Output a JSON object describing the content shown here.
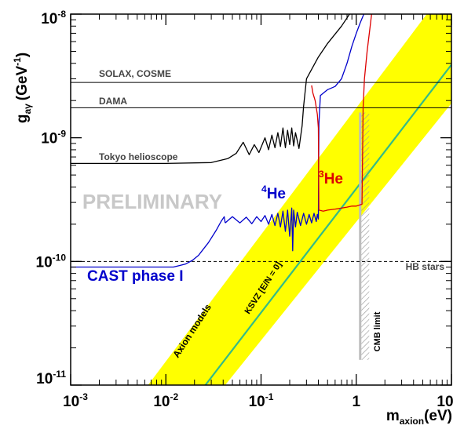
{
  "chart_data": {
    "type": "line",
    "x_scale": "log",
    "y_scale": "log",
    "xlim": [
      0.001,
      10
    ],
    "ylim": [
      1e-11,
      1e-08
    ],
    "grid": false,
    "xlabel": {
      "main": "m",
      "sub": "axion",
      "unit": "(eV)"
    },
    "ylabel": {
      "main": "g",
      "sub": "aγ",
      "unit": "(GeV",
      "unit_sup": "-1",
      "unit_close": ")"
    },
    "x_ticks": [
      {
        "value": 0.001,
        "base": "10",
        "exp": "-3"
      },
      {
        "value": 0.01,
        "base": "10",
        "exp": "-2"
      },
      {
        "value": 0.1,
        "base": "10",
        "exp": "-1"
      },
      {
        "value": 1,
        "base": "1",
        "exp": ""
      },
      {
        "value": 10,
        "base": "10",
        "exp": ""
      }
    ],
    "y_ticks": [
      {
        "value": 1e-11,
        "base": "10",
        "exp": "-11"
      },
      {
        "value": 1e-10,
        "base": "10",
        "exp": "-10"
      },
      {
        "value": 1e-09,
        "base": "10",
        "exp": "-9"
      },
      {
        "value": 1e-08,
        "base": "10",
        "exp": "-8"
      }
    ],
    "watermark": "PRELIMINARY",
    "axion_band": {
      "label": "Axion models",
      "color": "#ffff00",
      "polygon": [
        [
          0.0065,
          1e-11
        ],
        [
          0.042,
          1e-11
        ],
        [
          10,
          1.9e-09
        ],
        [
          10,
          1e-08
        ],
        [
          5.5,
          1e-08
        ],
        [
          0.0065,
          1e-11
        ]
      ]
    },
    "ksvz_line": {
      "label": "KSVZ [E/N = 0]",
      "color": "#33bb88",
      "points": [
        [
          0.026,
          1e-11
        ],
        [
          10,
          3.9e-09
        ]
      ]
    },
    "cmb_limit": {
      "label": "CMB limit",
      "x": 1.1,
      "y_range": [
        1.6e-11,
        1.6e-09
      ],
      "color": "#bdbdbd"
    },
    "reference_lines": [
      {
        "label": "SOLAX, COSME",
        "y": 2.8e-09,
        "style": "solid"
      },
      {
        "label": "DAMA",
        "y": 1.75e-09,
        "style": "solid"
      },
      {
        "label": "HB stars",
        "y": 1e-10,
        "style": "dashed"
      }
    ],
    "series": [
      {
        "name": "Tokyo helioscope",
        "color": "#000000",
        "label_color": "#444444",
        "points": [
          [
            0.001,
            6.2e-10
          ],
          [
            0.01,
            6.2e-10
          ],
          [
            0.03,
            6.3e-10
          ],
          [
            0.045,
            6.8e-10
          ],
          [
            0.055,
            7.5e-10
          ],
          [
            0.065,
            9.2e-10
          ],
          [
            0.075,
            7.3e-10
          ],
          [
            0.085,
            8.8e-10
          ],
          [
            0.095,
            7.6e-10
          ],
          [
            0.11,
            1e-09
          ],
          [
            0.12,
            8e-10
          ],
          [
            0.13,
            1.05e-09
          ],
          [
            0.14,
            8.3e-10
          ],
          [
            0.15,
            1.1e-09
          ],
          [
            0.16,
            8.5e-10
          ],
          [
            0.17,
            1.2e-09
          ],
          [
            0.18,
            8.3e-10
          ],
          [
            0.19,
            1.15e-09
          ],
          [
            0.2,
            8.8e-10
          ],
          [
            0.21,
            1.2e-09
          ],
          [
            0.22,
            8.6e-10
          ],
          [
            0.23,
            1.1e-09
          ],
          [
            0.25,
            8.2e-10
          ],
          [
            0.27,
            1.25e-09
          ],
          [
            0.28,
            1.8e-09
          ],
          [
            0.3,
            3e-09
          ],
          [
            0.4,
            4.5e-09
          ],
          [
            0.5,
            5.8e-09
          ],
          [
            0.7,
            8e-09
          ],
          [
            0.85,
            1e-08
          ]
        ]
      },
      {
        "name": "CAST phase I",
        "label_display": "CAST phase I",
        "color": "#0000cc",
        "points": [
          [
            0.001,
            9e-11
          ],
          [
            0.012,
            9e-11
          ],
          [
            0.016,
            9.5e-11
          ],
          [
            0.019,
            1.02e-10
          ],
          [
            0.022,
            1.12e-10
          ],
          [
            0.028,
            1.42e-10
          ],
          [
            0.034,
            1.8e-10
          ],
          [
            0.038,
            2.1e-10
          ],
          [
            0.041,
            2.3e-10
          ],
          [
            0.042,
            2.05e-10
          ]
        ]
      },
      {
        "name": "4He",
        "label_display": "He",
        "label_sup": "4",
        "color": "#0000cc",
        "points": [
          [
            0.042,
            2.05e-10
          ],
          [
            0.05,
            2.3e-10
          ],
          [
            0.06,
            2.05e-10
          ],
          [
            0.07,
            2.28e-10
          ],
          [
            0.08,
            2.02e-10
          ],
          [
            0.09,
            2.3e-10
          ],
          [
            0.1,
            2.1e-10
          ],
          [
            0.11,
            2.35e-10
          ],
          [
            0.12,
            2e-10
          ],
          [
            0.13,
            2.4e-10
          ],
          [
            0.14,
            1.95e-10
          ],
          [
            0.15,
            2.45e-10
          ],
          [
            0.16,
            1.9e-10
          ],
          [
            0.17,
            2.55e-10
          ],
          [
            0.18,
            1.75e-10
          ],
          [
            0.19,
            2.6e-10
          ],
          [
            0.2,
            1.6e-10
          ],
          [
            0.21,
            2.7e-10
          ],
          [
            0.215,
            1.22e-10
          ],
          [
            0.22,
            2.6e-10
          ],
          [
            0.23,
            1.9e-10
          ],
          [
            0.24,
            2.5e-10
          ],
          [
            0.26,
            1.95e-10
          ],
          [
            0.28,
            2.45e-10
          ],
          [
            0.3,
            2e-10
          ],
          [
            0.32,
            2.4e-10
          ],
          [
            0.34,
            2.05e-10
          ],
          [
            0.36,
            2.45e-10
          ],
          [
            0.38,
            2.1e-10
          ],
          [
            0.39,
            2.4e-10
          ],
          [
            0.4,
            2.2e-10
          ],
          [
            0.405,
            1.3e-09
          ],
          [
            0.42,
            2.2e-09
          ],
          [
            0.5,
            2.45e-09
          ],
          [
            0.6,
            2.6e-09
          ],
          [
            0.7,
            3e-09
          ],
          [
            0.8,
            4e-09
          ],
          [
            0.9,
            5.5e-09
          ],
          [
            1.0,
            7e-09
          ],
          [
            1.1,
            8.5e-09
          ],
          [
            1.2,
            1e-08
          ]
        ]
      },
      {
        "name": "3He",
        "label_display": "He",
        "label_sup": "3",
        "color": "#dd0000",
        "points": [
          [
            0.34,
            2.65e-09
          ],
          [
            0.35,
            2.3e-09
          ],
          [
            0.37,
            2e-09
          ],
          [
            0.39,
            1.55e-09
          ],
          [
            0.4,
            1.2e-09
          ],
          [
            0.405,
            2.6e-10
          ],
          [
            0.45,
            2.55e-10
          ],
          [
            0.5,
            2.6e-10
          ],
          [
            0.6,
            2.65e-10
          ],
          [
            0.7,
            2.7e-10
          ],
          [
            0.8,
            2.75e-10
          ],
          [
            0.9,
            2.8e-10
          ],
          [
            1.0,
            2.8e-10
          ],
          [
            1.15,
            2.9e-10
          ],
          [
            1.18,
            1.75e-09
          ],
          [
            1.22,
            3e-09
          ],
          [
            1.3,
            5e-09
          ],
          [
            1.4,
            8e-09
          ],
          [
            1.45,
            1e-08
          ]
        ]
      }
    ]
  }
}
